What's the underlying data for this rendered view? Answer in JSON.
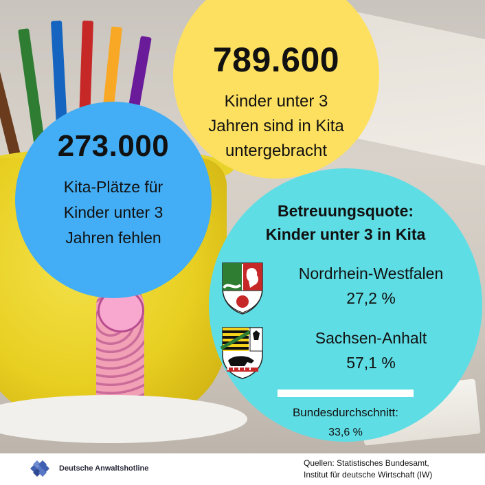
{
  "yellow_circle": {
    "number": "789.600",
    "caption_lines": [
      "Kinder unter 3",
      "Jahren sind in Kita",
      "untergebracht"
    ]
  },
  "blue_circle": {
    "number": "273.000",
    "caption_lines": [
      "Kita-Plätze für",
      "Kinder unter 3",
      "Jahren fehlen"
    ]
  },
  "cyan_circle": {
    "title_lines": [
      "Betreuungsquote:",
      "Kinder unter 3 in Kita"
    ],
    "states": [
      {
        "name": "Nordrhein-Westfalen",
        "value": "27,2 %",
        "crest_icon": "nrw-coat-of-arms-icon"
      },
      {
        "name": "Sachsen-Anhalt",
        "value": "57,1 %",
        "crest_icon": "saxony-anhalt-coat-of-arms-icon"
      }
    ],
    "average_label": "Bundesdurchschnitt:",
    "average_value": "33,6 %"
  },
  "footer": {
    "brand_name": "Deutsche Anwaltshotline",
    "sources_lines": [
      "Quellen: Statistisches Bundesamt,",
      "Institut für deutsche Wirtschaft (IW)"
    ]
  },
  "colors": {
    "yellow": "#fde05f",
    "blue": "#43aef5",
    "cyan": "#5fdde4",
    "text": "#111111"
  }
}
